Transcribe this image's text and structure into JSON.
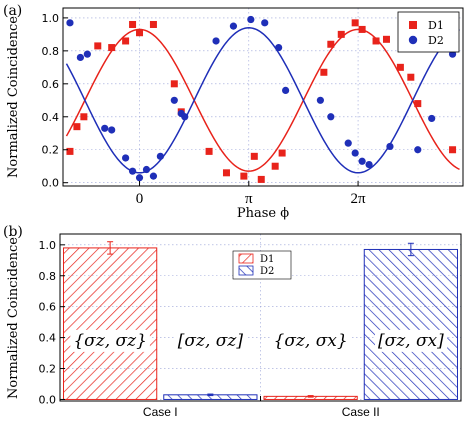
{
  "colors": {
    "d1": "#e8231b",
    "d2": "#1f2fb8",
    "grid": "#9aa3d8"
  },
  "chart_data": [
    {
      "panel_label": "(a)",
      "type": "scatter",
      "xlabel": "Phase ϕ",
      "ylabel": "Normalized Coincidence",
      "xlim": [
        -2.2,
        9.3
      ],
      "ylim": [
        -0.02,
        1.06
      ],
      "xticks": [
        {
          "value": 0,
          "label": "0"
        },
        {
          "value": 3.1416,
          "label": "π"
        },
        {
          "value": 6.2832,
          "label": "2π"
        }
      ],
      "yticks": [
        {
          "value": 0,
          "label": "0.0"
        },
        {
          "value": 0.2,
          "label": "0.2"
        },
        {
          "value": 0.4,
          "label": "0.4"
        },
        {
          "value": 0.6,
          "label": "0.6"
        },
        {
          "value": 0.8,
          "label": "0.8"
        },
        {
          "value": 1.0,
          "label": "1.0"
        }
      ],
      "legend": {
        "position": "top-right",
        "entries": [
          "D1",
          "D2"
        ]
      },
      "series": [
        {
          "name": "D1",
          "marker": "square",
          "x": [
            -2.0,
            -1.8,
            -1.6,
            -1.2,
            -0.8,
            -0.4,
            -0.2,
            0.0,
            0.4,
            1.0,
            1.2,
            2.0,
            2.5,
            3.0,
            3.3,
            3.5,
            3.9,
            4.1,
            5.3,
            5.5,
            5.8,
            6.2,
            6.4,
            6.8,
            7.1,
            7.5,
            7.8,
            8.0,
            9.0
          ],
          "y": [
            0.19,
            0.34,
            0.4,
            0.83,
            0.82,
            0.86,
            0.96,
            0.91,
            0.96,
            0.6,
            0.43,
            0.19,
            0.06,
            0.04,
            0.16,
            0.02,
            0.1,
            0.18,
            0.67,
            0.84,
            0.9,
            0.97,
            0.93,
            0.86,
            0.87,
            0.7,
            0.64,
            0.48,
            0.2
          ]
        },
        {
          "name": "D2",
          "marker": "circle",
          "x": [
            -2.0,
            -1.7,
            -1.5,
            -1.0,
            -0.8,
            -0.4,
            -0.2,
            0.0,
            0.2,
            0.4,
            0.6,
            1.0,
            1.2,
            1.3,
            2.2,
            2.7,
            3.2,
            3.6,
            4.0,
            4.2,
            5.2,
            5.5,
            6.0,
            6.2,
            6.4,
            6.6,
            7.2,
            8.0,
            8.4,
            9.0
          ],
          "y": [
            0.97,
            0.76,
            0.78,
            0.33,
            0.32,
            0.15,
            0.07,
            0.03,
            0.08,
            0.04,
            0.16,
            0.5,
            0.42,
            0.4,
            0.86,
            0.95,
            0.99,
            0.97,
            0.82,
            0.56,
            0.5,
            0.4,
            0.24,
            0.18,
            0.13,
            0.11,
            0.22,
            0.2,
            0.39,
            0.78
          ]
        }
      ],
      "fits": [
        {
          "name": "D1",
          "kind": "cosine",
          "offset": 0.5,
          "amplitude": 0.43,
          "period": 6.2832,
          "phase": 0.0
        },
        {
          "name": "D2",
          "kind": "cosine",
          "offset": 0.5,
          "amplitude": -0.44,
          "period": 6.2832,
          "phase": 0.0
        }
      ]
    },
    {
      "panel_label": "(b)",
      "type": "bar",
      "ylabel": "Normalized Coincidence",
      "ylim": [
        -0.01,
        1.07
      ],
      "yticks": [
        {
          "value": 0,
          "label": "0.0"
        },
        {
          "value": 0.2,
          "label": "0.2"
        },
        {
          "value": 0.4,
          "label": "0.4"
        },
        {
          "value": 0.6,
          "label": "0.6"
        },
        {
          "value": 0.8,
          "label": "0.8"
        },
        {
          "value": 1.0,
          "label": "1.0"
        }
      ],
      "groups": [
        "Case I",
        "Case II"
      ],
      "legend": {
        "position": "top-center",
        "entries": [
          "D1",
          "D2"
        ]
      },
      "bars": [
        {
          "series": "D1",
          "group": "Case I",
          "value": 0.98,
          "error": 0.04,
          "annotation": "{σz, σz}"
        },
        {
          "series": "D2",
          "group": "Case I",
          "value": 0.03,
          "error": 0.005,
          "annotation": "[σz, σz]"
        },
        {
          "series": "D1",
          "group": "Case II",
          "value": 0.02,
          "error": 0.005,
          "annotation": "{σz, σx}"
        },
        {
          "series": "D2",
          "group": "Case II",
          "value": 0.97,
          "error": 0.04,
          "annotation": "[σz, σx]"
        }
      ]
    }
  ]
}
